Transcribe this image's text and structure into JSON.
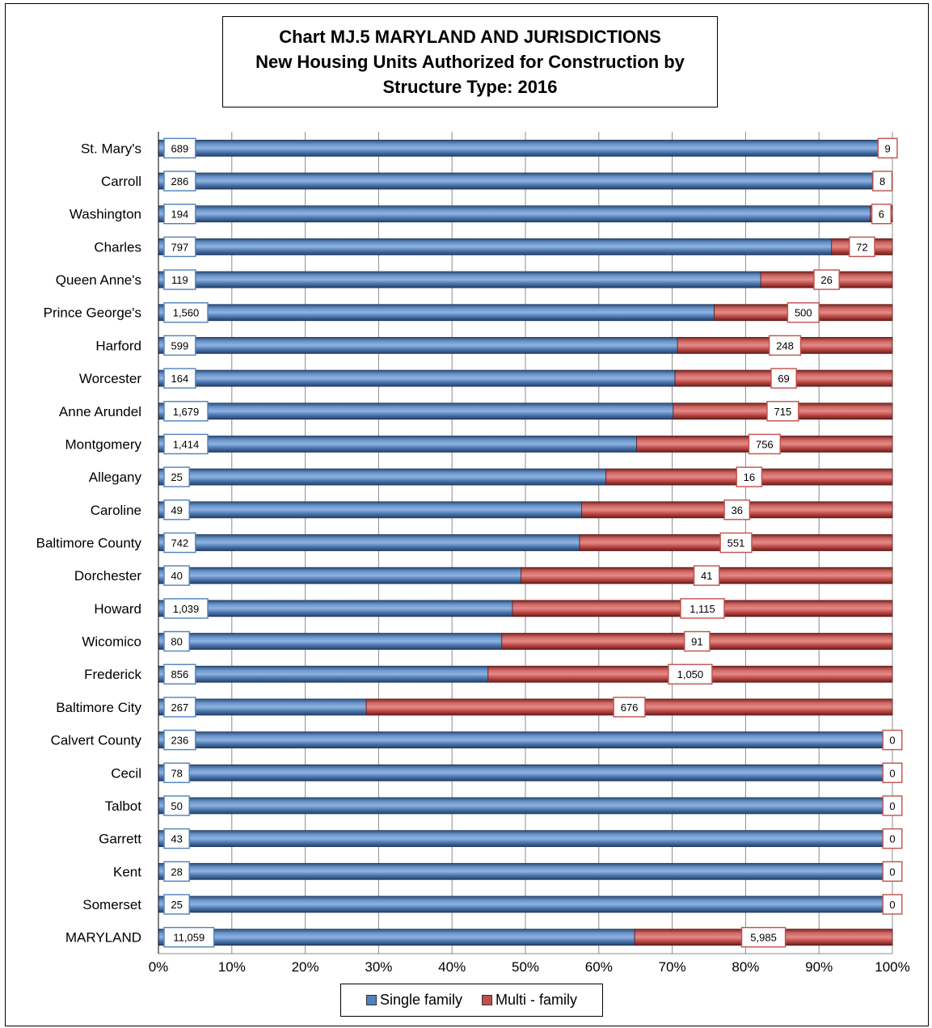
{
  "chart_data": {
    "type": "bar",
    "orientation": "horizontal",
    "stacked": "percent",
    "title_lines": [
      "Chart MJ.5  MARYLAND AND JURISDICTIONS",
      "New Housing Units Authorized for Construction by",
      "Structure Type:  2016"
    ],
    "categories": [
      "St. Mary's",
      "Carroll",
      "Washington",
      "Charles",
      "Queen Anne's",
      "Prince George's",
      "Harford",
      "Worcester",
      "Anne Arundel",
      "Montgomery",
      "Allegany",
      "Caroline",
      "Baltimore County",
      "Dorchester",
      "Howard",
      "Wicomico",
      "Frederick",
      "Baltimore City",
      "Calvert County",
      "Cecil",
      "Talbot",
      "Garrett",
      "Kent",
      "Somerset",
      "MARYLAND"
    ],
    "series": [
      {
        "name": "Single family",
        "color": "#4f81bd",
        "label_border": "#4f81bd",
        "values": [
          689,
          286,
          194,
          797,
          119,
          1560,
          599,
          164,
          1679,
          1414,
          25,
          49,
          742,
          40,
          1039,
          80,
          856,
          267,
          236,
          78,
          50,
          43,
          28,
          25,
          11059
        ],
        "labels": [
          "689",
          "286",
          "194",
          "797",
          "119",
          "1,560",
          "599",
          "164",
          "1,679",
          "1,414",
          "25",
          "49",
          "742",
          "40",
          "1,039",
          "80",
          "856",
          "267",
          "236",
          "78",
          "50",
          "43",
          "28",
          "25",
          "11,059"
        ]
      },
      {
        "name": "Multi - family",
        "color": "#c0504d",
        "label_border": "#c0504d",
        "values": [
          9,
          8,
          6,
          72,
          26,
          500,
          248,
          69,
          715,
          756,
          16,
          36,
          551,
          41,
          1115,
          91,
          1050,
          676,
          0,
          0,
          0,
          0,
          0,
          0,
          5985
        ],
        "labels": [
          "9",
          "8",
          "6",
          "72",
          "26",
          "500",
          "248",
          "69",
          "715",
          "756",
          "16",
          "36",
          "551",
          "41",
          "1,115",
          "91",
          "1,050",
          "676",
          "0",
          "0",
          "0",
          "0",
          "0",
          "0",
          "5,985"
        ]
      }
    ],
    "xlim": [
      0,
      100
    ],
    "x_ticks": [
      "0%",
      "10%",
      "20%",
      "30%",
      "40%",
      "50%",
      "60%",
      "70%",
      "80%",
      "90%",
      "100%"
    ],
    "grid": true,
    "legend_position": "bottom"
  }
}
